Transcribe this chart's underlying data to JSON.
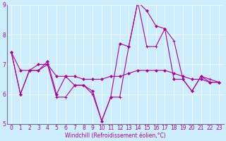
{
  "xlabel": "Windchill (Refroidissement éolien,°C)",
  "xlim": [
    -0.5,
    23.5
  ],
  "ylim": [
    5,
    9
  ],
  "yticks": [
    5,
    6,
    7,
    8,
    9
  ],
  "xticks": [
    0,
    1,
    2,
    3,
    4,
    5,
    6,
    7,
    8,
    9,
    10,
    11,
    12,
    13,
    14,
    15,
    16,
    17,
    18,
    19,
    20,
    21,
    22,
    23
  ],
  "line_color": "#aa00aa",
  "bg_color": "#cceeff",
  "line1_x": [
    0,
    1,
    2,
    3,
    4,
    5,
    6,
    7,
    8,
    9,
    10,
    11,
    12,
    13,
    14,
    15,
    16,
    17,
    18,
    19,
    20,
    21,
    22,
    23
  ],
  "line1_y": [
    7.4,
    6.0,
    6.8,
    6.8,
    7.1,
    6.0,
    6.6,
    6.3,
    6.3,
    6.1,
    5.1,
    5.9,
    7.7,
    7.6,
    9.1,
    8.8,
    8.3,
    8.2,
    6.5,
    6.5,
    6.1,
    6.6,
    6.4,
    6.4
  ],
  "line2_x": [
    0,
    1,
    2,
    3,
    4,
    5,
    6,
    7,
    8,
    9,
    10,
    11,
    12,
    13,
    14,
    15,
    16,
    17,
    18,
    19,
    20,
    21,
    22,
    23
  ],
  "line2_y": [
    7.4,
    6.8,
    6.8,
    7.0,
    7.0,
    6.6,
    6.6,
    6.6,
    6.5,
    6.5,
    6.5,
    6.6,
    6.6,
    6.7,
    6.8,
    6.8,
    6.8,
    6.8,
    6.7,
    6.6,
    6.5,
    6.5,
    6.4,
    6.4
  ],
  "line3_x": [
    0,
    1,
    2,
    3,
    4,
    5,
    6,
    7,
    8,
    9,
    10,
    11,
    12,
    13,
    14,
    15,
    16,
    17,
    18,
    19,
    20,
    21,
    22,
    23
  ],
  "line3_y": [
    7.4,
    6.0,
    6.8,
    6.8,
    7.0,
    5.9,
    5.9,
    6.3,
    6.3,
    6.0,
    5.1,
    5.9,
    5.9,
    7.6,
    9.1,
    7.6,
    7.6,
    8.2,
    7.8,
    6.5,
    6.1,
    6.6,
    6.5,
    6.4
  ],
  "lw": 0.8,
  "markersize": 2.0,
  "xlabel_fontsize": 5.5,
  "tick_fontsize": 5.5
}
